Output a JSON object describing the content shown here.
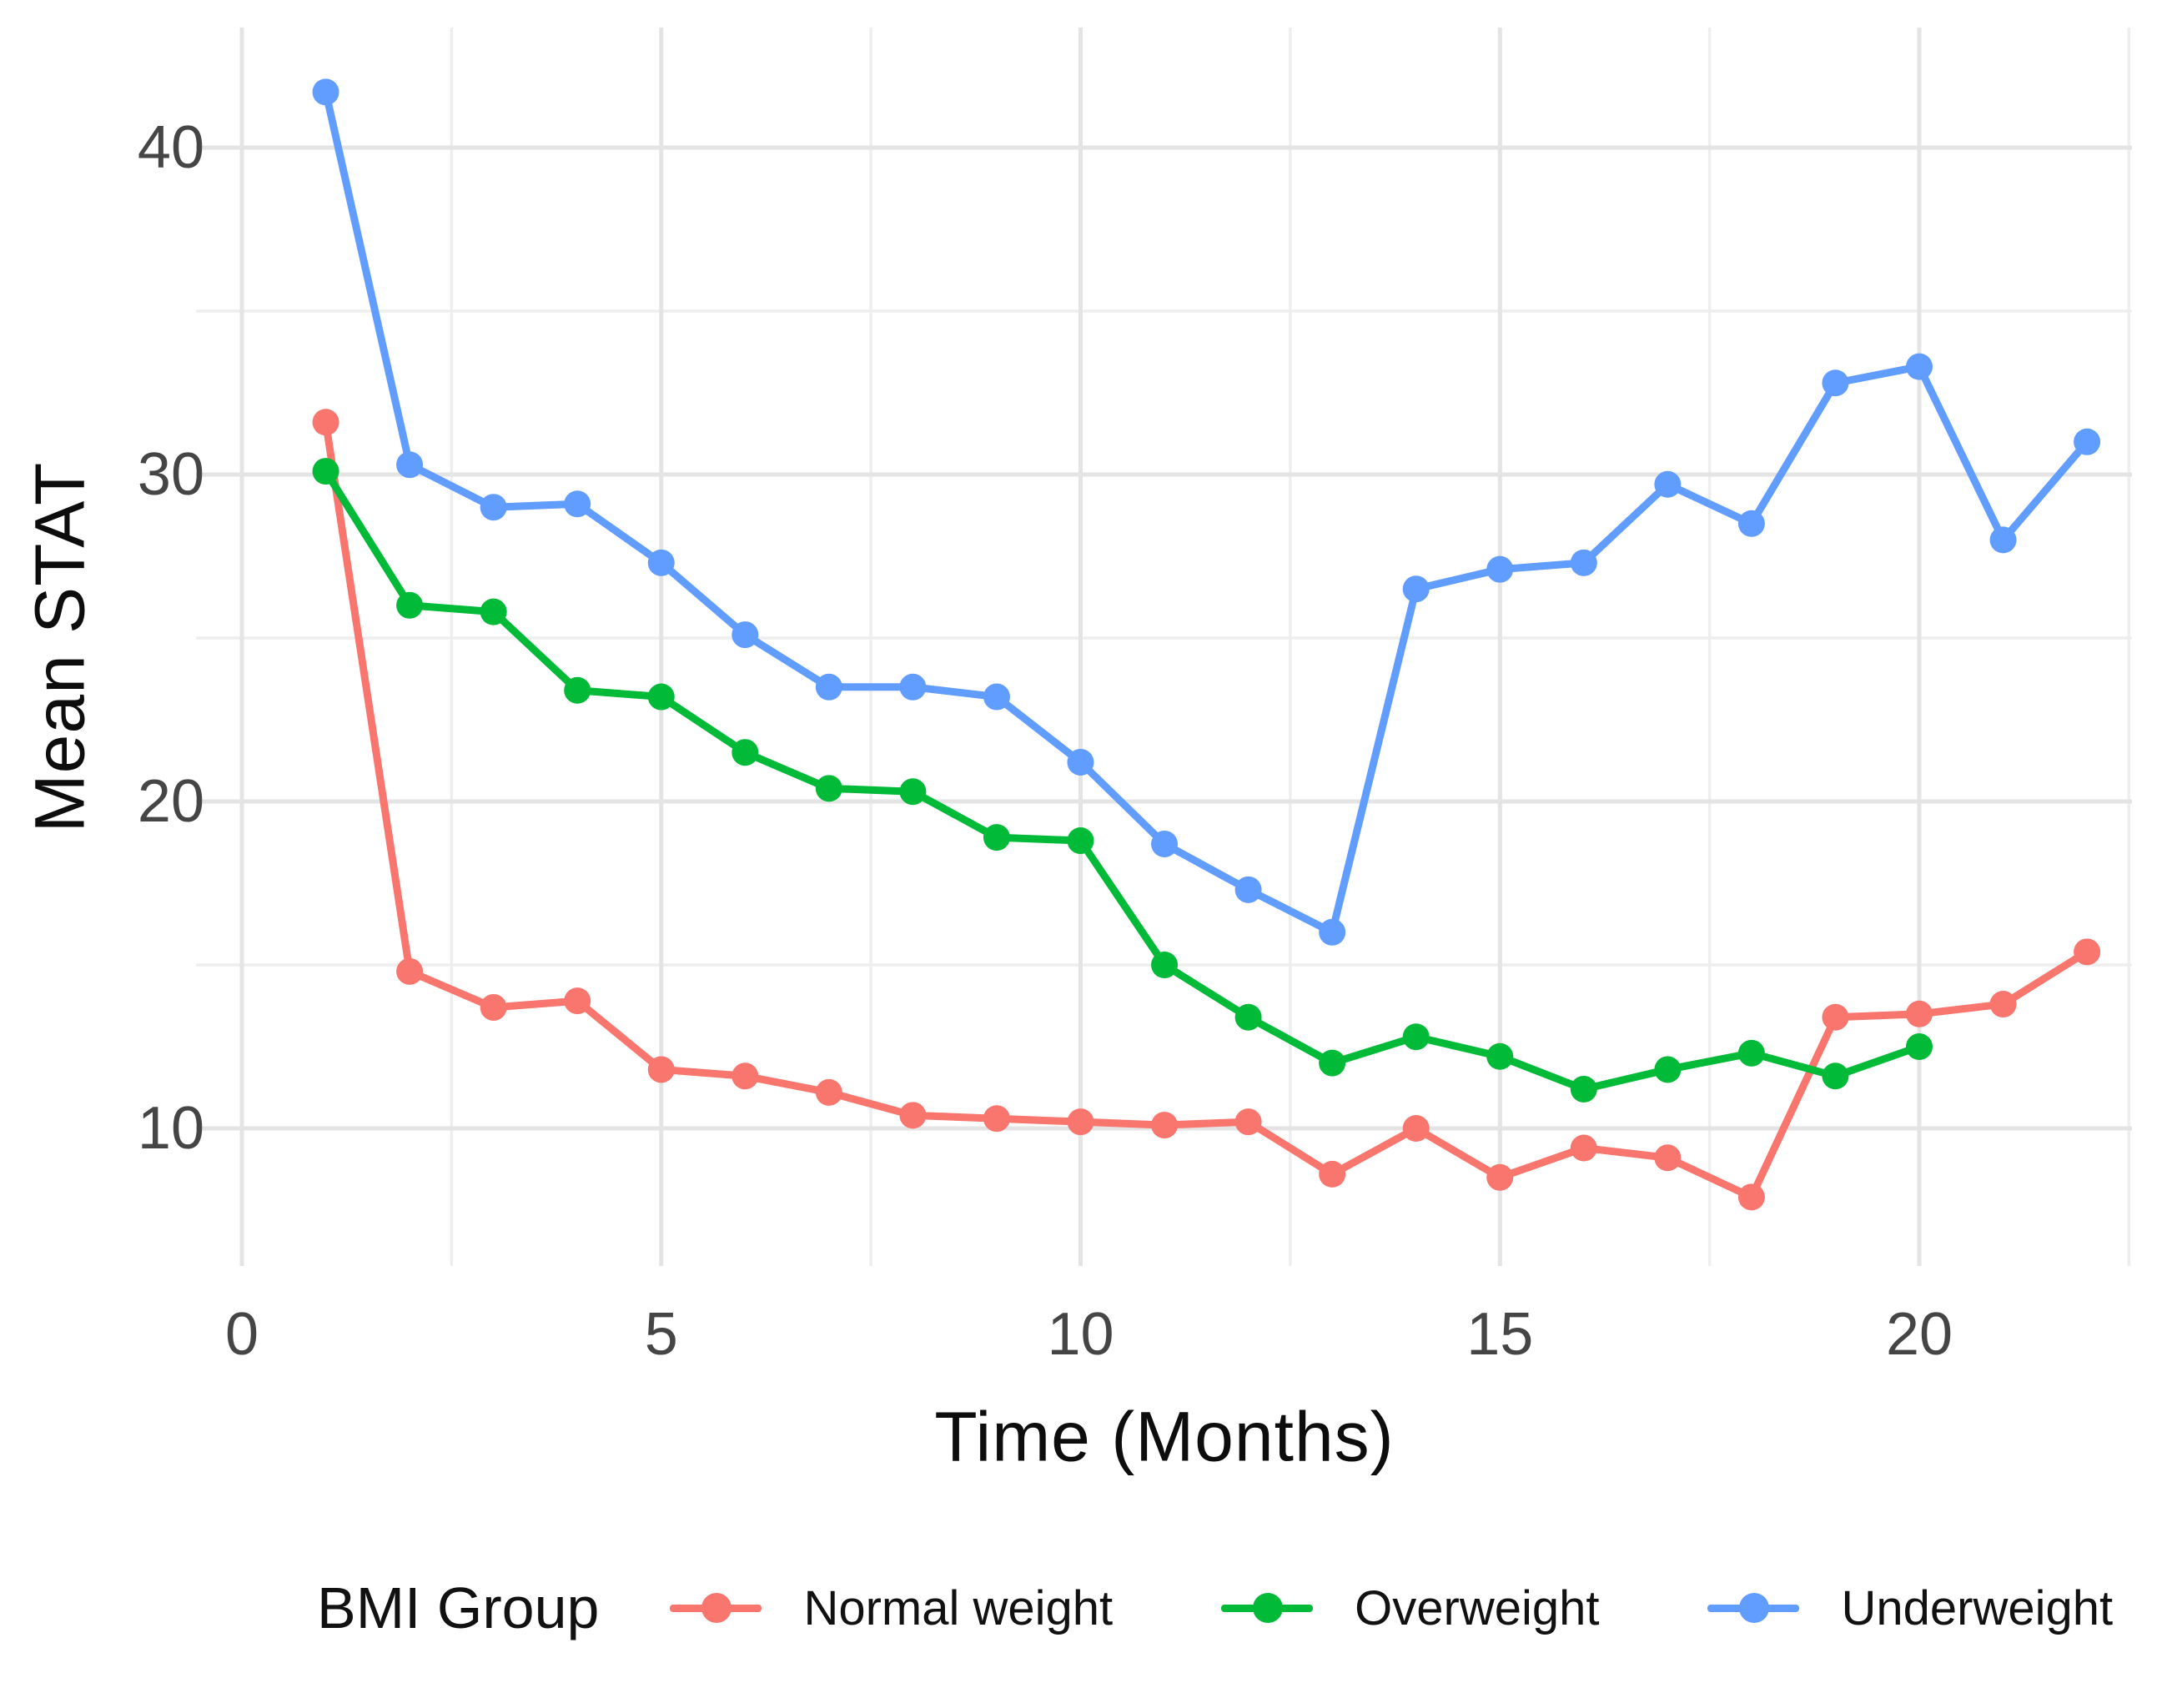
{
  "chart_data": {
    "type": "line",
    "title": "",
    "xlabel": "Time (Months)",
    "ylabel": "Mean STAT",
    "x": [
      1,
      2,
      3,
      4,
      5,
      6,
      7,
      8,
      9,
      10,
      11,
      12,
      13,
      14,
      15,
      16,
      17,
      18,
      19,
      20,
      21,
      22
    ],
    "series": [
      {
        "name": "Normal weight",
        "color": "#F8766D",
        "values": [
          31.6,
          14.8,
          13.7,
          13.9,
          11.8,
          11.6,
          11.1,
          10.4,
          10.3,
          10.2,
          10.1,
          10.2,
          8.6,
          10.0,
          8.5,
          9.4,
          9.1,
          7.9,
          13.4,
          13.5,
          13.8,
          15.4
        ]
      },
      {
        "name": "Overweight",
        "color": "#00BA38",
        "values": [
          30.1,
          26.0,
          25.8,
          23.4,
          23.2,
          21.5,
          20.4,
          20.3,
          18.9,
          18.8,
          15.0,
          13.4,
          12.0,
          12.8,
          12.2,
          11.2,
          11.8,
          12.3,
          11.6,
          12.5
        ]
      },
      {
        "name": "Underweight",
        "color": "#619CFF",
        "values": [
          41.7,
          30.3,
          29.0,
          29.1,
          27.3,
          25.1,
          23.5,
          23.5,
          23.2,
          21.2,
          18.7,
          17.3,
          16.0,
          26.5,
          27.1,
          27.3,
          29.7,
          28.5,
          32.8,
          33.3,
          28.0,
          31.0
        ]
      }
    ],
    "legend": {
      "title": "BMI Group",
      "position": "bottom"
    },
    "x_axis": {
      "ticks": [
        0,
        5,
        10,
        15,
        20
      ],
      "tick_labels": [
        "0",
        "5",
        "10",
        "15",
        "20"
      ],
      "minor": [
        2.5,
        7.5,
        12.5,
        17.5,
        22.5
      ],
      "range": [
        -0.55,
        22.53
      ]
    },
    "y_axis": {
      "ticks": [
        10,
        20,
        30,
        40
      ],
      "tick_labels": [
        "10",
        "20",
        "30",
        "40"
      ],
      "minor": [
        15,
        25,
        35
      ],
      "range": [
        5.8,
        43.7
      ]
    },
    "grid": true,
    "colors": {
      "background": "#ffffff",
      "grid_major": "#e4e4e4",
      "grid_minor": "#eeeeee",
      "tick_text": "#454545",
      "title_text": "#0d0d0d"
    }
  }
}
